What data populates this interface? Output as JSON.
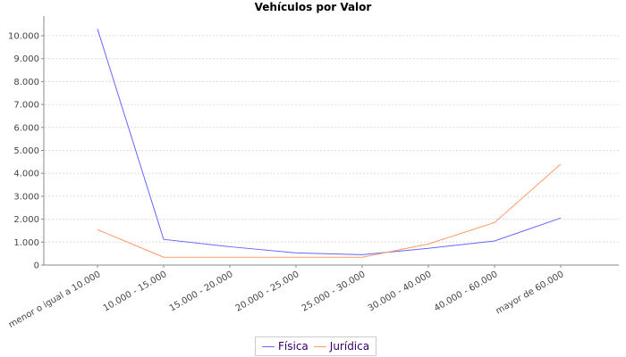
{
  "chart_data": {
    "type": "line",
    "title": "Vehículos por Valor",
    "xlabel": "",
    "ylabel": "",
    "categories": [
      "menor o igual a 10.000",
      "10.000 - 15.000",
      "15.000 - 20.000",
      "20.000 - 25.000",
      "25.000 - 30.000",
      "30.000 - 40.000",
      "40.000 - 60.000",
      "mayor de 60.000"
    ],
    "ylim": [
      0,
      10800
    ],
    "yticks": [
      0,
      1000,
      2000,
      3000,
      4000,
      5000,
      6000,
      7000,
      8000,
      9000,
      10000
    ],
    "ytick_labels": [
      "0",
      "1.000",
      "2.000",
      "3.000",
      "4.000",
      "5.000",
      "6.000",
      "7.000",
      "8.000",
      "9.000",
      "10.000"
    ],
    "grid": true,
    "legend_position": "bottom",
    "series": [
      {
        "name": "Física",
        "color": "#6666ff",
        "values": [
          10300,
          1120,
          800,
          530,
          450,
          730,
          1050,
          2050
        ]
      },
      {
        "name": "Jurídica",
        "color": "#ff9966",
        "values": [
          1545,
          340,
          340,
          340,
          340,
          920,
          1855,
          4400
        ]
      }
    ]
  }
}
